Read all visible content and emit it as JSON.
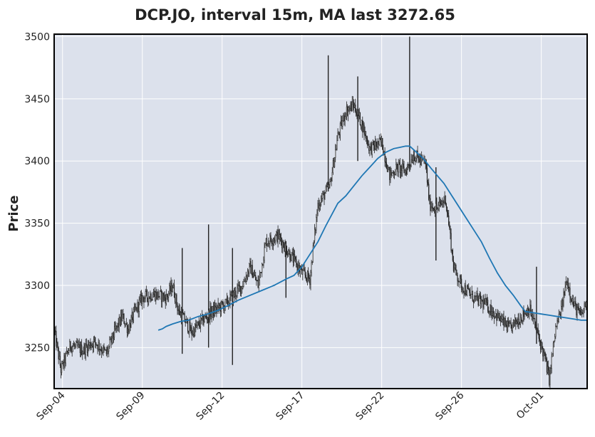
{
  "chart_data": {
    "type": "candlestick",
    "title": "DCP.JO, interval 15m, MA last 3272.65",
    "xlabel": "",
    "ylabel": "Price",
    "ylim": [
      3217,
      3502
    ],
    "y_ticks": [
      3250,
      3300,
      3350,
      3400,
      3450,
      3500
    ],
    "y_tick_labels": [
      "3250",
      "3300",
      "3350",
      "3400",
      "3450",
      "3500"
    ],
    "x_tick_labels": [
      "Sep-04",
      "Sep-09",
      "Sep-12",
      "Sep-17",
      "Sep-22",
      "Sep-26",
      "Oct-01"
    ],
    "x_tick_index": [
      10,
      110,
      210,
      310,
      410,
      510,
      610
    ],
    "n_bars": 668,
    "grid": true,
    "background": "#dce1ec",
    "candle_color": "#222222",
    "ma_color": "#1f77b4",
    "price_path": [
      [
        0,
        3262
      ],
      [
        8,
        3232
      ],
      [
        20,
        3252
      ],
      [
        35,
        3248
      ],
      [
        50,
        3255
      ],
      [
        65,
        3245
      ],
      [
        75,
        3262
      ],
      [
        85,
        3275
      ],
      [
        92,
        3265
      ],
      [
        100,
        3278
      ],
      [
        110,
        3290
      ],
      [
        125,
        3293
      ],
      [
        140,
        3290
      ],
      [
        148,
        3300
      ],
      [
        155,
        3280
      ],
      [
        165,
        3270
      ],
      [
        172,
        3262
      ],
      [
        180,
        3268
      ],
      [
        195,
        3278
      ],
      [
        215,
        3285
      ],
      [
        235,
        3300
      ],
      [
        245,
        3315
      ],
      [
        255,
        3300
      ],
      [
        265,
        3335
      ],
      [
        280,
        3340
      ],
      [
        295,
        3325
      ],
      [
        310,
        3310
      ],
      [
        320,
        3305
      ],
      [
        330,
        3365
      ],
      [
        345,
        3380
      ],
      [
        355,
        3420
      ],
      [
        365,
        3440
      ],
      [
        375,
        3445
      ],
      [
        385,
        3430
      ],
      [
        395,
        3410
      ],
      [
        410,
        3415
      ],
      [
        420,
        3388
      ],
      [
        430,
        3395
      ],
      [
        440,
        3392
      ],
      [
        450,
        3405
      ],
      [
        460,
        3400
      ],
      [
        465,
        3398
      ],
      [
        470,
        3365
      ],
      [
        480,
        3362
      ],
      [
        490,
        3370
      ],
      [
        495,
        3345
      ],
      [
        500,
        3315
      ],
      [
        510,
        3300
      ],
      [
        525,
        3290
      ],
      [
        540,
        3285
      ],
      [
        555,
        3275
      ],
      [
        570,
        3265
      ],
      [
        585,
        3275
      ],
      [
        595,
        3282
      ],
      [
        605,
        3262
      ],
      [
        615,
        3240
      ],
      [
        620,
        3225
      ],
      [
        628,
        3265
      ],
      [
        635,
        3280
      ],
      [
        642,
        3305
      ],
      [
        650,
        3285
      ],
      [
        660,
        3275
      ],
      [
        668,
        3290
      ]
    ],
    "spikes": [
      {
        "i": 160,
        "high": 3330,
        "low": 3245
      },
      {
        "i": 193,
        "high": 3349,
        "low": 3250
      },
      {
        "i": 223,
        "high": 3330,
        "low": 3236
      },
      {
        "i": 290,
        "high": 3335,
        "low": 3290
      },
      {
        "i": 343,
        "high": 3485,
        "low": 3420
      },
      {
        "i": 380,
        "high": 3468,
        "low": 3400
      },
      {
        "i": 445,
        "high": 3500,
        "low": 3395
      },
      {
        "i": 478,
        "high": 3395,
        "low": 3320
      },
      {
        "i": 604,
        "high": 3315,
        "low": 3253
      }
    ],
    "ma_start_index": 130,
    "ma": [
      [
        130,
        3264
      ],
      [
        135,
        3265
      ],
      [
        140,
        3267
      ],
      [
        148,
        3269
      ],
      [
        158,
        3271
      ],
      [
        168,
        3272
      ],
      [
        180,
        3275
      ],
      [
        192,
        3277
      ],
      [
        205,
        3280
      ],
      [
        218,
        3284
      ],
      [
        230,
        3288
      ],
      [
        245,
        3292
      ],
      [
        260,
        3296
      ],
      [
        275,
        3300
      ],
      [
        290,
        3305
      ],
      [
        300,
        3308
      ],
      [
        310,
        3315
      ],
      [
        320,
        3325
      ],
      [
        330,
        3335
      ],
      [
        340,
        3348
      ],
      [
        350,
        3360
      ],
      [
        355,
        3366
      ],
      [
        365,
        3372
      ],
      [
        375,
        3380
      ],
      [
        385,
        3388
      ],
      [
        395,
        3395
      ],
      [
        405,
        3402
      ],
      [
        415,
        3407
      ],
      [
        425,
        3410
      ],
      [
        433,
        3411
      ],
      [
        440,
        3412
      ],
      [
        445,
        3412
      ],
      [
        452,
        3408
      ],
      [
        462,
        3402
      ],
      [
        472,
        3394
      ],
      [
        480,
        3388
      ],
      [
        488,
        3382
      ],
      [
        495,
        3375
      ],
      [
        505,
        3365
      ],
      [
        515,
        3355
      ],
      [
        525,
        3345
      ],
      [
        535,
        3335
      ],
      [
        545,
        3322
      ],
      [
        555,
        3310
      ],
      [
        565,
        3300
      ],
      [
        575,
        3292
      ],
      [
        585,
        3283
      ],
      [
        590,
        3279
      ],
      [
        600,
        3278
      ],
      [
        610,
        3277
      ],
      [
        620,
        3276
      ],
      [
        630,
        3275
      ],
      [
        640,
        3274
      ],
      [
        650,
        3273
      ],
      [
        660,
        3272
      ],
      [
        668,
        3272
      ]
    ]
  }
}
